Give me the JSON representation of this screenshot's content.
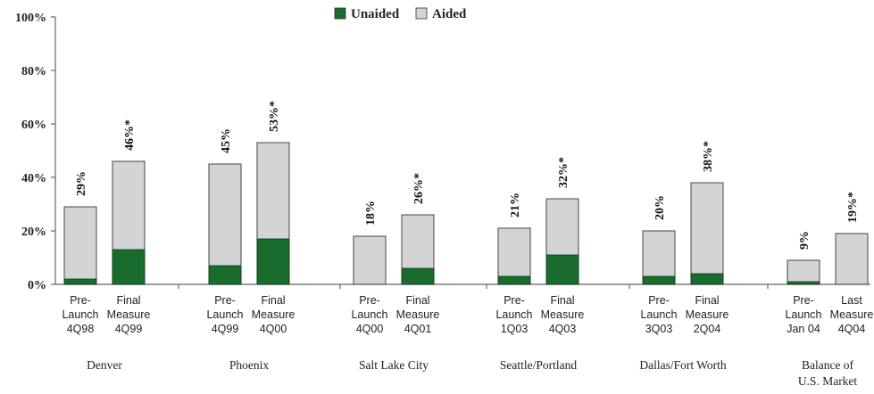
{
  "chart_data": {
    "type": "bar",
    "stacked": true,
    "ylim": [
      0,
      100
    ],
    "y_ticks": [
      "0%",
      "20%",
      "40%",
      "60%",
      "80%",
      "100%"
    ],
    "legend": {
      "placement": "top-center",
      "items": [
        {
          "name": "Unaided",
          "color": "#1a6b2e"
        },
        {
          "name": "Aided",
          "color": "#d4d4d4"
        }
      ]
    },
    "groups": [
      {
        "name": "Denver",
        "bars": [
          {
            "label": [
              "Pre-",
              "Launch",
              "4Q98"
            ],
            "unaided": 2,
            "aided": 29,
            "total_label": "29%"
          },
          {
            "label": [
              "Final",
              "Measure",
              "4Q99"
            ],
            "unaided": 13,
            "aided": 46,
            "total_label": "46%*"
          }
        ]
      },
      {
        "name": "Phoenix",
        "bars": [
          {
            "label": [
              "Pre-",
              "Launch",
              "4Q99"
            ],
            "unaided": 7,
            "aided": 45,
            "total_label": "45%"
          },
          {
            "label": [
              "Final",
              "Measure",
              "4Q00"
            ],
            "unaided": 17,
            "aided": 53,
            "total_label": "53%*"
          }
        ]
      },
      {
        "name": "Salt Lake City",
        "bars": [
          {
            "label": [
              "Pre-",
              "Launch",
              "4Q00"
            ],
            "unaided": 0,
            "aided": 18,
            "total_label": "18%"
          },
          {
            "label": [
              "Final",
              "Measure",
              "4Q01"
            ],
            "unaided": 6,
            "aided": 26,
            "total_label": "26%*"
          }
        ]
      },
      {
        "name": "Seattle/Portland",
        "bars": [
          {
            "label": [
              "Pre-",
              "Launch",
              "1Q03"
            ],
            "unaided": 3,
            "aided": 21,
            "total_label": "21%"
          },
          {
            "label": [
              "Final",
              "Measure",
              "4Q03"
            ],
            "unaided": 11,
            "aided": 32,
            "total_label": "32%*"
          }
        ]
      },
      {
        "name": "Dallas/Fort Worth",
        "bars": [
          {
            "label": [
              "Pre-",
              "Launch",
              "3Q03"
            ],
            "unaided": 3,
            "aided": 20,
            "total_label": "20%"
          },
          {
            "label": [
              "Final",
              "Measure",
              "2Q04"
            ],
            "unaided": 4,
            "aided": 38,
            "total_label": "38%*"
          }
        ]
      },
      {
        "name": "Balance of U.S. Market",
        "name_lines": [
          "Balance of",
          "U.S. Market"
        ],
        "bars": [
          {
            "label": [
              "Pre-",
              "Launch",
              "Jan 04"
            ],
            "unaided": 1,
            "aided": 9,
            "total_label": "9%"
          },
          {
            "label": [
              "Last",
              "Measure",
              "4Q04"
            ],
            "unaided": 0,
            "aided": 19,
            "total_label": "19%*"
          }
        ]
      }
    ]
  }
}
